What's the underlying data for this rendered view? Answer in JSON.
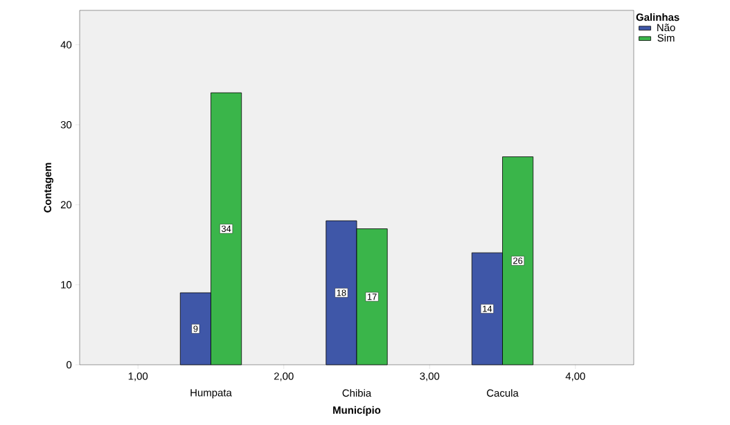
{
  "chart_data": {
    "type": "bar",
    "xlabel": "Município",
    "ylabel": "Contagem",
    "legend_title": "Galinhas",
    "legend": "top right",
    "data_labels": true,
    "grid": false,
    "x": [
      1.5,
      2.5,
      3.5
    ],
    "xlim": [
      0.6,
      4.4
    ],
    "ylim": [
      0,
      44.3
    ],
    "xticks": [
      {
        "value": 1,
        "label": "1,00"
      },
      {
        "value": 2,
        "label": "2,00"
      },
      {
        "value": 3,
        "label": "3,00"
      },
      {
        "value": 4,
        "label": "4,00"
      }
    ],
    "annotations": [
      "Humpata",
      "Chibia",
      "Cacula"
    ],
    "yticks": [
      0,
      10,
      20,
      30,
      40
    ],
    "series": [
      {
        "name": "Não",
        "color": "#3f57a8",
        "values": [
          9,
          18,
          14
        ]
      },
      {
        "name": "Sim",
        "color": "#3ab54a",
        "values": [
          34,
          17,
          26
        ]
      }
    ]
  }
}
